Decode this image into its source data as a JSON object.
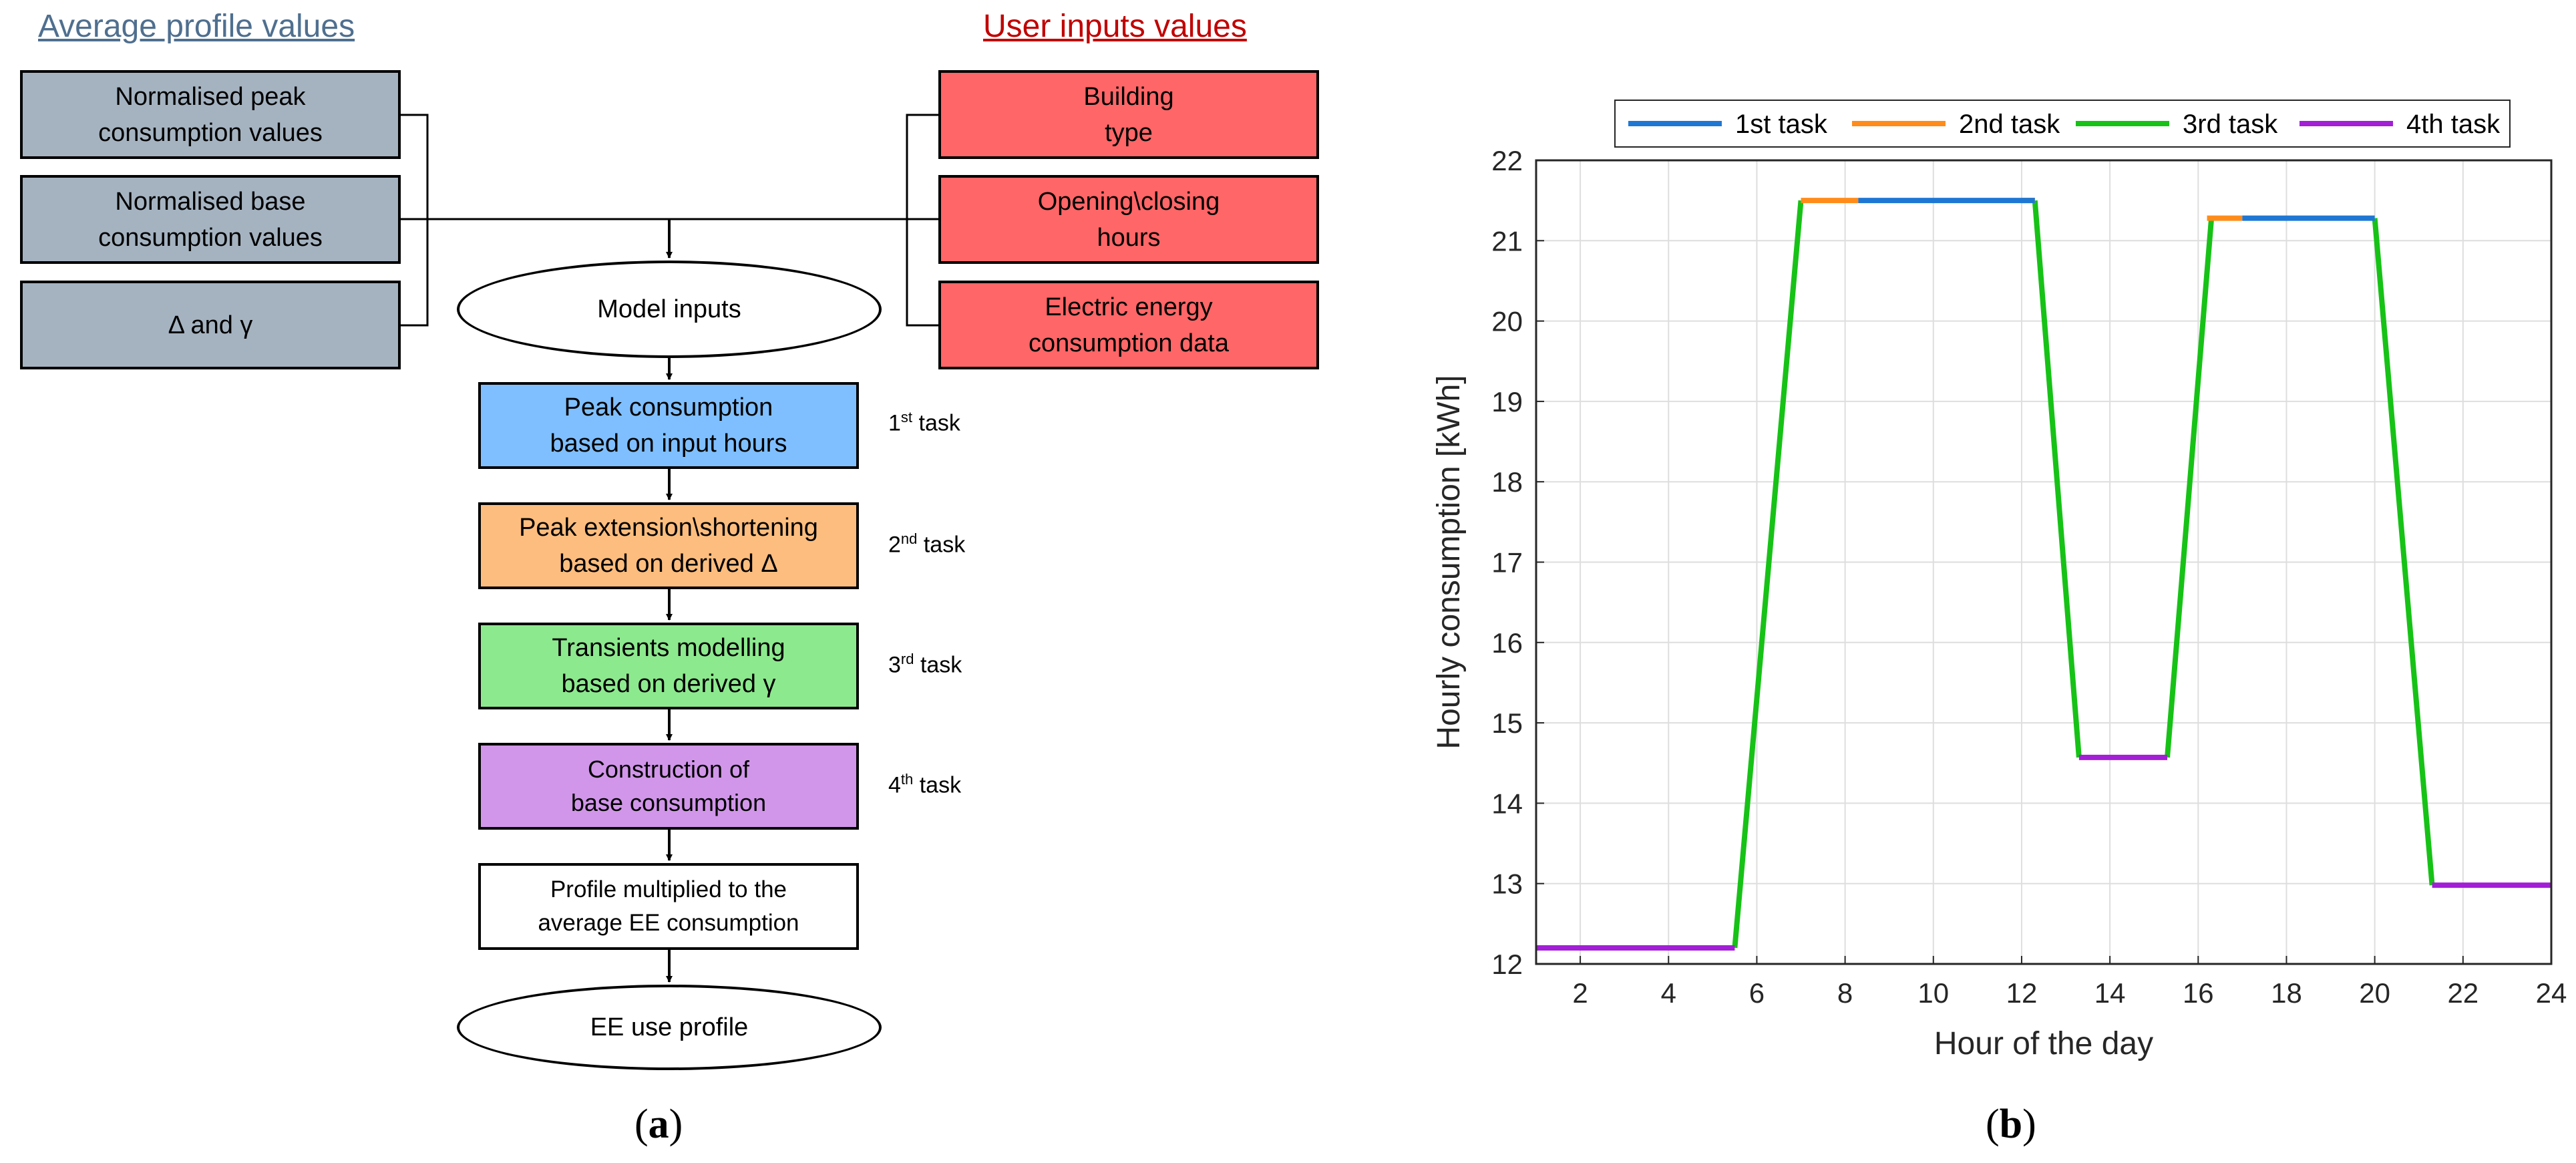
{
  "panel_a": {
    "label": "a",
    "headings": {
      "left": "Average profile values",
      "right": "User inputs values"
    },
    "colors": {
      "gray": "#a5b3c1",
      "red": "#ff6667",
      "blue": "#7fbfff",
      "orange": "#fdbd7e",
      "green": "#8de98e",
      "purple": "#d196e9",
      "left_heading": "#4f6f8f",
      "right_heading": "#c00000"
    },
    "left_boxes": [
      {
        "line1": "Normalised peak",
        "line2": "consumption values"
      },
      {
        "line1": "Normalised base",
        "line2": "consumption values"
      },
      {
        "line1": "Δ and γ",
        "line2": ""
      }
    ],
    "right_boxes": [
      {
        "line1": "Building",
        "line2": "type"
      },
      {
        "line1": "Opening\\closing",
        "line2": "hours"
      },
      {
        "line1": "Electric energy",
        "line2": "consumption data"
      }
    ],
    "model_inputs": "Model inputs",
    "tasks": [
      {
        "line1": "Peak consumption",
        "line2": "based on input hours",
        "num": "1",
        "sup": "st",
        "word": "task"
      },
      {
        "line1": "Peak extension\\shortening",
        "line2": "based on derived Δ",
        "num": "2",
        "sup": "nd",
        "word": "task"
      },
      {
        "line1": "Transients modelling",
        "line2": "based on derived γ",
        "num": "3",
        "sup": "rd",
        "word": "task"
      },
      {
        "line1": "Construction of",
        "line2": "base consumption",
        "num": "4",
        "sup": "th",
        "word": "task"
      }
    ],
    "profile_box": {
      "line1": "Profile multiplied to the",
      "line2": "average EE consumption"
    },
    "output": "EE use profile"
  },
  "panel_b": {
    "label": "b",
    "chart_data": {
      "type": "line",
      "title": "",
      "xlabel": "Hour of the day",
      "ylabel": "Hourly consumption [kWh]",
      "xlim": [
        1,
        24
      ],
      "ylim": [
        12,
        22
      ],
      "xticks": [
        2,
        4,
        6,
        8,
        10,
        12,
        14,
        16,
        18,
        20,
        22,
        24
      ],
      "yticks": [
        12,
        13,
        14,
        15,
        16,
        17,
        18,
        19,
        20,
        21,
        22
      ],
      "grid": true,
      "legend_position": "top",
      "series": [
        {
          "name": "1st task",
          "color": "#1f77d4",
          "segments": [
            [
              [
                8.3,
                21.5
              ],
              [
                12.3,
                21.5
              ]
            ],
            [
              [
                17.0,
                21.28
              ],
              [
                20.0,
                21.28
              ]
            ]
          ]
        },
        {
          "name": "2nd task",
          "color": "#ff8c1a",
          "segments": [
            [
              [
                7.0,
                21.5
              ],
              [
                8.3,
                21.5
              ]
            ],
            [
              [
                12.0,
                21.5
              ],
              [
                12.3,
                21.5
              ]
            ],
            [
              [
                16.2,
                21.28
              ],
              [
                17.0,
                21.28
              ]
            ]
          ]
        },
        {
          "name": "3rd task",
          "color": "#17c217",
          "segments": [
            [
              [
                5.5,
                12.2
              ],
              [
                7.0,
                21.5
              ]
            ],
            [
              [
                12.3,
                21.5
              ],
              [
                13.3,
                14.57
              ]
            ],
            [
              [
                15.3,
                14.57
              ],
              [
                16.3,
                21.28
              ]
            ],
            [
              [
                20.0,
                21.28
              ],
              [
                21.3,
                12.98
              ]
            ]
          ]
        },
        {
          "name": "4th task",
          "color": "#a21fd6",
          "segments": [
            [
              [
                1.0,
                12.2
              ],
              [
                5.5,
                12.2
              ]
            ],
            [
              [
                13.3,
                14.57
              ],
              [
                15.3,
                14.57
              ]
            ],
            [
              [
                21.3,
                12.98
              ],
              [
                24.0,
                12.98
              ]
            ]
          ]
        }
      ]
    }
  }
}
